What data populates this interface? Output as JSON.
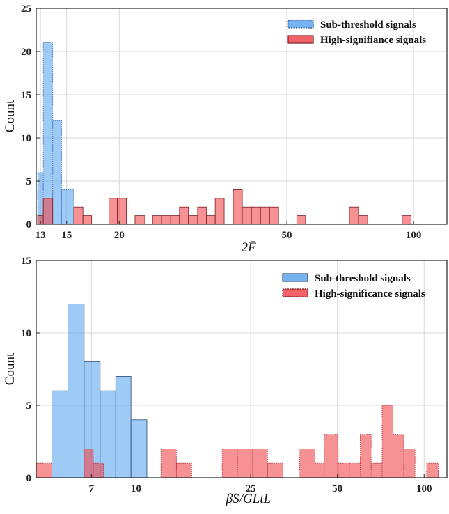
{
  "chart_data": [
    {
      "type": "bar",
      "xlabel": "2F̄",
      "ylabel": "Count",
      "xscale": "log",
      "xlim": [
        12.7,
        120
      ],
      "ylim": [
        0,
        25
      ],
      "xticks": [
        13,
        15,
        20,
        50,
        100
      ],
      "yticks": [
        0,
        5,
        10,
        15,
        20,
        25
      ],
      "grid": true,
      "legend_position": "top-right",
      "series": [
        {
          "name": "Sub-threshold signals",
          "color": "#5ea6f0",
          "bins": [
            {
              "left": 12.8,
              "right": 13.2,
              "value": 6
            },
            {
              "left": 13.2,
              "right": 13.9,
              "value": 21
            },
            {
              "left": 13.9,
              "right": 14.6,
              "value": 12
            },
            {
              "left": 14.6,
              "right": 15.6,
              "value": 4
            }
          ]
        },
        {
          "name": "High-signifiance signals",
          "color": "#f0474d",
          "bins": [
            {
              "left": 12.8,
              "right": 13.2,
              "value": 1
            },
            {
              "left": 13.2,
              "right": 13.9,
              "value": 3
            },
            {
              "left": 15.6,
              "right": 16.4,
              "value": 2
            },
            {
              "left": 16.4,
              "right": 17.2,
              "value": 1
            },
            {
              "left": 18.9,
              "right": 19.8,
              "value": 3
            },
            {
              "left": 19.8,
              "right": 20.8,
              "value": 3
            },
            {
              "left": 21.8,
              "right": 23.0,
              "value": 1
            },
            {
              "left": 24.0,
              "right": 25.2,
              "value": 1
            },
            {
              "left": 25.2,
              "right": 26.5,
              "value": 1
            },
            {
              "left": 26.5,
              "right": 27.8,
              "value": 1
            },
            {
              "left": 27.8,
              "right": 29.2,
              "value": 2
            },
            {
              "left": 29.2,
              "right": 30.7,
              "value": 1
            },
            {
              "left": 30.7,
              "right": 32.2,
              "value": 2
            },
            {
              "left": 32.2,
              "right": 33.8,
              "value": 1
            },
            {
              "left": 33.8,
              "right": 35.5,
              "value": 3
            },
            {
              "left": 37.3,
              "right": 39.2,
              "value": 4
            },
            {
              "left": 39.2,
              "right": 41.2,
              "value": 2
            },
            {
              "left": 41.2,
              "right": 43.3,
              "value": 2
            },
            {
              "left": 43.3,
              "right": 45.5,
              "value": 2
            },
            {
              "left": 45.5,
              "right": 47.8,
              "value": 2
            },
            {
              "left": 52.8,
              "right": 55.4,
              "value": 1
            },
            {
              "left": 70.4,
              "right": 74.0,
              "value": 2
            },
            {
              "left": 74.0,
              "right": 77.8,
              "value": 1
            },
            {
              "left": 94.0,
              "right": 98.7,
              "value": 1
            }
          ]
        }
      ]
    },
    {
      "type": "bar",
      "xlabel": "β̂S/GLtL",
      "ylabel": "Count",
      "xscale": "log",
      "xlim": [
        4.5,
        120
      ],
      "ylim": [
        0,
        15
      ],
      "xticks": [
        7,
        10,
        25,
        50,
        100
      ],
      "yticks": [
        0,
        5,
        10,
        15
      ],
      "grid": true,
      "legend_position": "top-right",
      "series": [
        {
          "name": "Sub-threshold signals",
          "color": "#5ea6f0",
          "bins": [
            {
              "left": 5.1,
              "right": 5.8,
              "value": 6
            },
            {
              "left": 5.8,
              "right": 6.6,
              "value": 12
            },
            {
              "left": 6.6,
              "right": 7.5,
              "value": 8
            },
            {
              "left": 7.5,
              "right": 8.5,
              "value": 6
            },
            {
              "left": 8.5,
              "right": 9.6,
              "value": 7
            },
            {
              "left": 9.6,
              "right": 10.9,
              "value": 4
            }
          ]
        },
        {
          "name": "High-significance signals",
          "color": "#f0474d",
          "bins": [
            {
              "left": 4.5,
              "right": 5.1,
              "value": 1
            },
            {
              "left": 6.6,
              "right": 7.1,
              "value": 2
            },
            {
              "left": 7.1,
              "right": 7.7,
              "value": 1
            },
            {
              "left": 12.2,
              "right": 13.8,
              "value": 2
            },
            {
              "left": 13.8,
              "right": 15.6,
              "value": 1
            },
            {
              "left": 19.9,
              "right": 22.5,
              "value": 2
            },
            {
              "left": 22.5,
              "right": 25.4,
              "value": 2
            },
            {
              "left": 25.4,
              "right": 28.6,
              "value": 2
            },
            {
              "left": 28.6,
              "right": 32.4,
              "value": 1
            },
            {
              "left": 37.0,
              "right": 41.8,
              "value": 2
            },
            {
              "left": 41.8,
              "right": 45.0,
              "value": 1
            },
            {
              "left": 45.0,
              "right": 50.3,
              "value": 3
            },
            {
              "left": 50.3,
              "right": 55.0,
              "value": 1
            },
            {
              "left": 55.0,
              "right": 60.0,
              "value": 1
            },
            {
              "left": 60.0,
              "right": 65.5,
              "value": 3
            },
            {
              "left": 65.5,
              "right": 71.5,
              "value": 1
            },
            {
              "left": 71.5,
              "right": 78.0,
              "value": 5
            },
            {
              "left": 78.0,
              "right": 85.0,
              "value": 3
            },
            {
              "left": 85.0,
              "right": 93.0,
              "value": 2
            },
            {
              "left": 93.0,
              "right": 102.0,
              "value": 0
            },
            {
              "left": 102.0,
              "right": 112.0,
              "value": 1
            }
          ]
        }
      ]
    }
  ]
}
